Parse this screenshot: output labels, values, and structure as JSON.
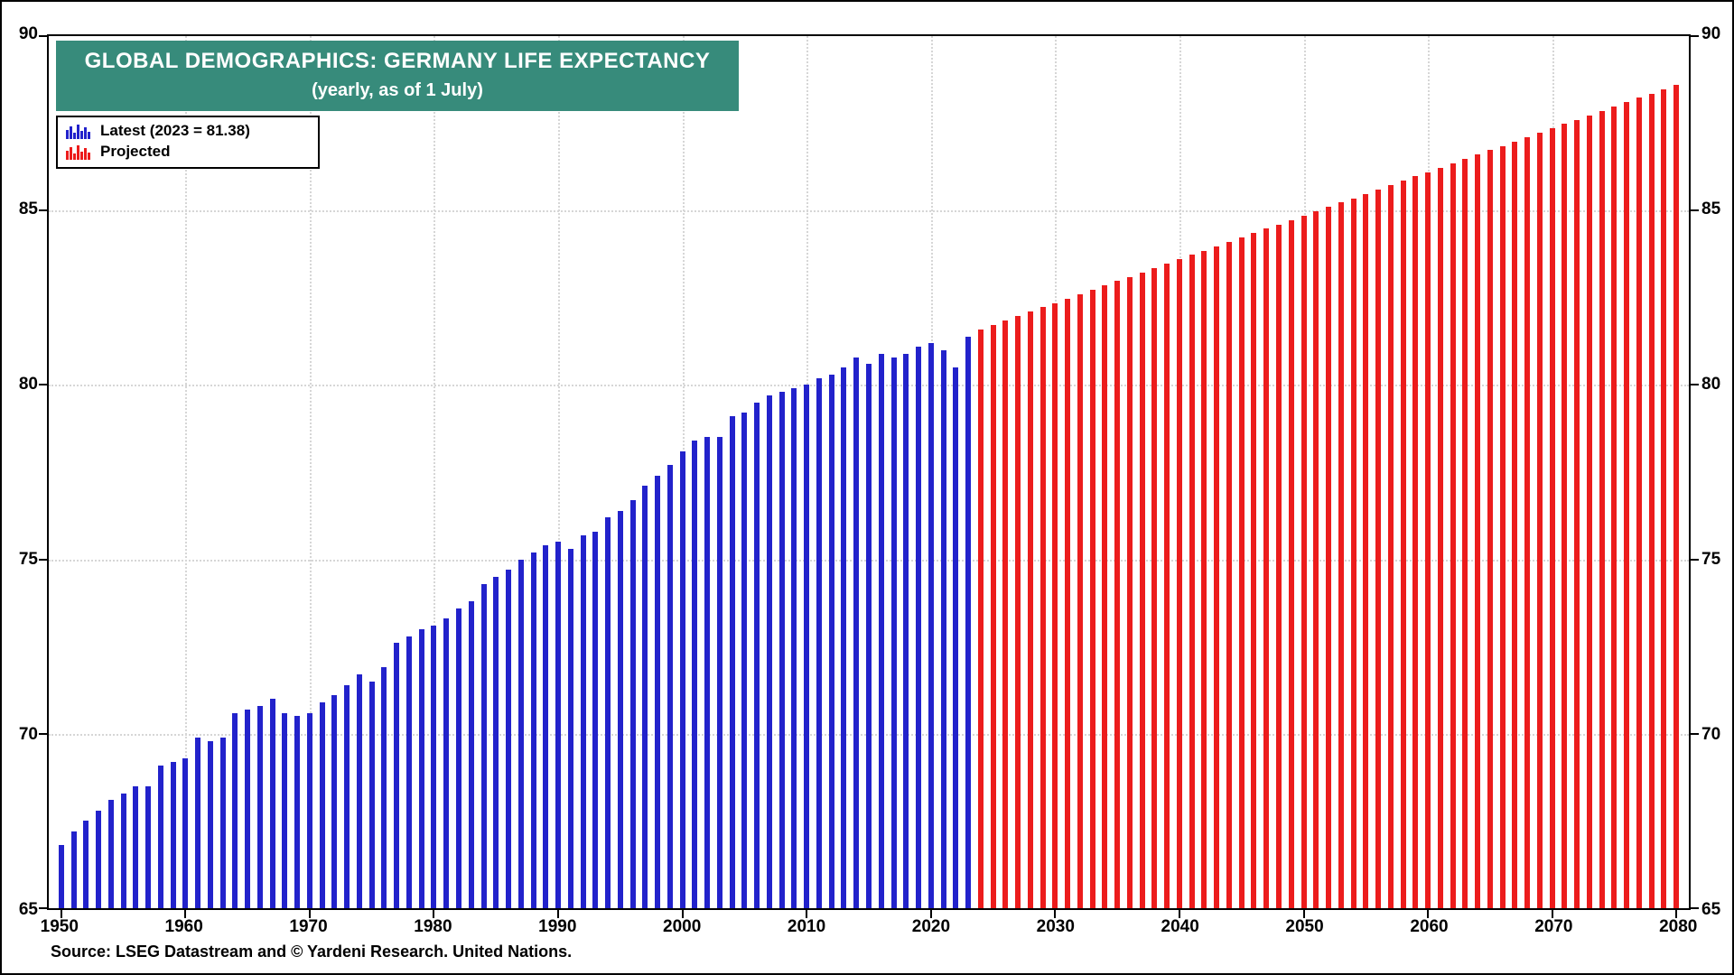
{
  "title": {
    "line1": "GLOBAL DEMOGRAPHICS: GERMANY LIFE EXPECTANCY",
    "line2": "(yearly, as of 1 July)"
  },
  "legend": {
    "latest_label": "Latest (2023 = 81.38)",
    "projected_label": "Projected"
  },
  "source": "Source: LSEG Datastream and © Yardeni Research. United Nations.",
  "colors": {
    "latest": "#2222cb",
    "projected": "#ec1c1c",
    "title_bg": "#378b7b",
    "grid": "#d6d6d6",
    "axis": "#000000",
    "background": "#ffffff"
  },
  "chart_data": {
    "type": "bar",
    "title": "GLOBAL DEMOGRAPHICS: GERMANY LIFE EXPECTANCY",
    "subtitle": "(yearly, as of 1 July)",
    "xlabel": "",
    "ylabel": "",
    "ylim": [
      65,
      90
    ],
    "xlim": [
      1949,
      2081
    ],
    "y_ticks": [
      65,
      70,
      75,
      80,
      85,
      90
    ],
    "x_ticks": [
      1950,
      1960,
      1970,
      1980,
      1990,
      2000,
      2010,
      2020,
      2030,
      2040,
      2050,
      2060,
      2070,
      2080
    ],
    "grid": true,
    "legend_position": "top-left",
    "series": [
      {
        "name": "Latest (2023 = 81.38)",
        "color": "#2222cb",
        "points": [
          [
            1950,
            66.8
          ],
          [
            1951,
            67.2
          ],
          [
            1952,
            67.5
          ],
          [
            1953,
            67.8
          ],
          [
            1954,
            68.1
          ],
          [
            1955,
            68.3
          ],
          [
            1956,
            68.5
          ],
          [
            1957,
            68.5
          ],
          [
            1958,
            69.1
          ],
          [
            1959,
            69.2
          ],
          [
            1960,
            69.3
          ],
          [
            1961,
            69.9
          ],
          [
            1962,
            69.8
          ],
          [
            1963,
            69.9
          ],
          [
            1964,
            70.6
          ],
          [
            1965,
            70.7
          ],
          [
            1966,
            70.8
          ],
          [
            1967,
            71.0
          ],
          [
            1968,
            70.6
          ],
          [
            1969,
            70.5
          ],
          [
            1970,
            70.6
          ],
          [
            1971,
            70.9
          ],
          [
            1972,
            71.1
          ],
          [
            1973,
            71.4
          ],
          [
            1974,
            71.7
          ],
          [
            1975,
            71.5
          ],
          [
            1976,
            71.9
          ],
          [
            1977,
            72.6
          ],
          [
            1978,
            72.8
          ],
          [
            1979,
            73.0
          ],
          [
            1980,
            73.1
          ],
          [
            1981,
            73.3
          ],
          [
            1982,
            73.6
          ],
          [
            1983,
            73.8
          ],
          [
            1984,
            74.3
          ],
          [
            1985,
            74.5
          ],
          [
            1986,
            74.7
          ],
          [
            1987,
            75.0
          ],
          [
            1988,
            75.2
          ],
          [
            1989,
            75.4
          ],
          [
            1990,
            75.5
          ],
          [
            1991,
            75.3
          ],
          [
            1992,
            75.7
          ],
          [
            1993,
            75.8
          ],
          [
            1994,
            76.2
          ],
          [
            1995,
            76.4
          ],
          [
            1996,
            76.7
          ],
          [
            1997,
            77.1
          ],
          [
            1998,
            77.4
          ],
          [
            1999,
            77.7
          ],
          [
            2000,
            78.1
          ],
          [
            2001,
            78.4
          ],
          [
            2002,
            78.5
          ],
          [
            2003,
            78.5
          ],
          [
            2004,
            79.1
          ],
          [
            2005,
            79.2
          ],
          [
            2006,
            79.5
          ],
          [
            2007,
            79.7
          ],
          [
            2008,
            79.8
          ],
          [
            2009,
            79.9
          ],
          [
            2010,
            80.0
          ],
          [
            2011,
            80.2
          ],
          [
            2012,
            80.3
          ],
          [
            2013,
            80.5
          ],
          [
            2014,
            80.8
          ],
          [
            2015,
            80.6
          ],
          [
            2016,
            80.9
          ],
          [
            2017,
            80.8
          ],
          [
            2018,
            80.9
          ],
          [
            2019,
            81.1
          ],
          [
            2020,
            81.2
          ],
          [
            2021,
            81.0
          ],
          [
            2022,
            80.5
          ],
          [
            2023,
            81.38
          ]
        ]
      },
      {
        "name": "Projected",
        "color": "#ec1c1c",
        "points": [
          [
            2024,
            81.6
          ],
          [
            2025,
            81.73
          ],
          [
            2026,
            81.85
          ],
          [
            2027,
            81.98
          ],
          [
            2028,
            82.1
          ],
          [
            2029,
            82.23
          ],
          [
            2030,
            82.35
          ],
          [
            2031,
            82.48
          ],
          [
            2032,
            82.6
          ],
          [
            2033,
            82.73
          ],
          [
            2034,
            82.85
          ],
          [
            2035,
            82.98
          ],
          [
            2036,
            83.1
          ],
          [
            2037,
            83.23
          ],
          [
            2038,
            83.35
          ],
          [
            2039,
            83.48
          ],
          [
            2040,
            83.6
          ],
          [
            2041,
            83.73
          ],
          [
            2042,
            83.85
          ],
          [
            2043,
            83.98
          ],
          [
            2044,
            84.1
          ],
          [
            2045,
            84.23
          ],
          [
            2046,
            84.35
          ],
          [
            2047,
            84.48
          ],
          [
            2048,
            84.6
          ],
          [
            2049,
            84.73
          ],
          [
            2050,
            84.85
          ],
          [
            2051,
            84.98
          ],
          [
            2052,
            85.1
          ],
          [
            2053,
            85.23
          ],
          [
            2054,
            85.35
          ],
          [
            2055,
            85.48
          ],
          [
            2056,
            85.6
          ],
          [
            2057,
            85.73
          ],
          [
            2058,
            85.85
          ],
          [
            2059,
            85.98
          ],
          [
            2060,
            86.1
          ],
          [
            2061,
            86.23
          ],
          [
            2062,
            86.35
          ],
          [
            2063,
            86.48
          ],
          [
            2064,
            86.6
          ],
          [
            2065,
            86.73
          ],
          [
            2066,
            86.85
          ],
          [
            2067,
            86.98
          ],
          [
            2068,
            87.1
          ],
          [
            2069,
            87.23
          ],
          [
            2070,
            87.35
          ],
          [
            2071,
            87.48
          ],
          [
            2072,
            87.6
          ],
          [
            2073,
            87.73
          ],
          [
            2074,
            87.85
          ],
          [
            2075,
            87.98
          ],
          [
            2076,
            88.1
          ],
          [
            2077,
            88.23
          ],
          [
            2078,
            88.35
          ],
          [
            2079,
            88.48
          ],
          [
            2080,
            88.6
          ]
        ]
      }
    ]
  }
}
